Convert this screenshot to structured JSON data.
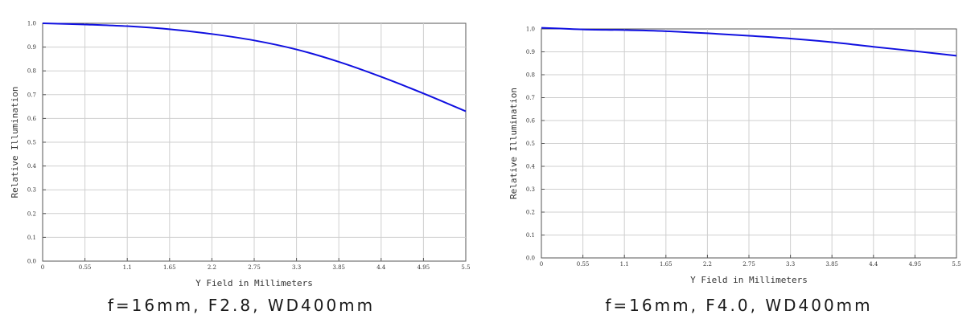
{
  "chart_data": [
    {
      "type": "line",
      "xlabel": "Y Field in Millimeters",
      "ylabel": "Relative Illumination",
      "caption": "f=16mm, F2.8, WD400mm",
      "xlim": [
        0,
        5.5
      ],
      "ylim": [
        0.0,
        1.0
      ],
      "x_ticks": [
        "0",
        "0.55",
        "1.1",
        "1.65",
        "2.2",
        "2.75",
        "3.3",
        "3.85",
        "4.4",
        "4.95",
        "5.5"
      ],
      "y_ticks": [
        "0.0",
        "0.1",
        "0.2",
        "0.3",
        "0.4",
        "0.5",
        "0.6",
        "0.7",
        "0.8",
        "0.9",
        "1.0"
      ],
      "grid": true,
      "color": "#1010e0",
      "series": [
        {
          "x": [
            0,
            0.55,
            1.1,
            1.65,
            2.2,
            2.75,
            3.3,
            3.85,
            4.4,
            4.95,
            5.5
          ],
          "values": [
            1.0,
            0.995,
            0.988,
            0.975,
            0.955,
            0.928,
            0.89,
            0.838,
            0.775,
            0.705,
            0.63
          ]
        }
      ]
    },
    {
      "type": "line",
      "xlabel": "Y Field in Millimeters",
      "ylabel": "Relative Illumination",
      "caption": "f=16mm, F4.0, WD400mm",
      "xlim": [
        0,
        5.5
      ],
      "ylim": [
        0.0,
        1.0
      ],
      "x_ticks": [
        "0",
        "0.55",
        "1.1",
        "1.65",
        "2.2",
        "2.75",
        "3.3",
        "3.85",
        "4.4",
        "4.95",
        "5.5"
      ],
      "y_ticks": [
        "0.0",
        "0.1",
        "0.2",
        "0.3",
        "0.4",
        "0.5",
        "0.6",
        "0.7",
        "0.8",
        "0.9",
        "1.0"
      ],
      "grid": true,
      "color": "#1010e0",
      "series": [
        {
          "x": [
            0,
            0.55,
            1.1,
            1.65,
            2.2,
            2.75,
            3.3,
            3.85,
            4.4,
            4.95,
            5.5
          ],
          "values": [
            1.005,
            0.998,
            0.995,
            0.99,
            0.981,
            0.97,
            0.958,
            0.942,
            0.922,
            0.903,
            0.883
          ]
        }
      ]
    }
  ]
}
